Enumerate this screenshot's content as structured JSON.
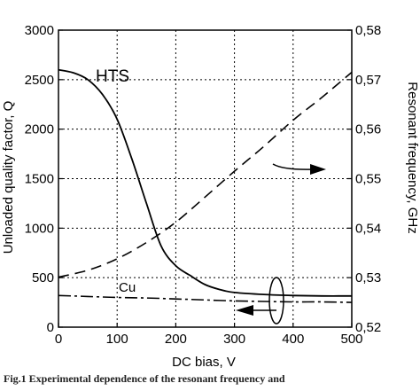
{
  "chart_data": {
    "type": "line",
    "xlabel": "DC bias, V",
    "ylabel_left": "Unloaded quality factor, Q",
    "ylabel_right": "Resonant frequency, GHz",
    "xlim": [
      0,
      500
    ],
    "ylim_left": [
      0,
      3000
    ],
    "ylim_right": [
      0.52,
      0.58
    ],
    "x_ticks": [
      "0",
      "100",
      "200",
      "300",
      "400",
      "500"
    ],
    "y_left_ticks": [
      "0",
      "500",
      "1000",
      "1500",
      "2000",
      "2500",
      "3000"
    ],
    "y_right_ticks": [
      "0,52",
      "0,53",
      "0,54",
      "0,55",
      "0,56",
      "0,57",
      "0,58"
    ],
    "grid": true,
    "series": [
      {
        "name": "HTS",
        "axis": "left",
        "style": "solid",
        "x": [
          0,
          25,
          50,
          75,
          100,
          125,
          150,
          175,
          200,
          225,
          250,
          275,
          300,
          350,
          400,
          450,
          500
        ],
        "y": [
          2600,
          2570,
          2500,
          2350,
          2100,
          1700,
          1250,
          820,
          620,
          520,
          430,
          380,
          350,
          330,
          320,
          315,
          315
        ]
      },
      {
        "name": "Cu",
        "axis": "left",
        "style": "dash-dot",
        "x": [
          0,
          50,
          100,
          150,
          200,
          250,
          300,
          350,
          400,
          450,
          500
        ],
        "y": [
          320,
          310,
          300,
          295,
          285,
          275,
          265,
          260,
          255,
          255,
          250
        ]
      },
      {
        "name": "",
        "axis": "right",
        "style": "dashed",
        "x": [
          0,
          50,
          100,
          150,
          200,
          250,
          300,
          350,
          400,
          450,
          500
        ],
        "y": [
          0.5301,
          0.5315,
          0.5338,
          0.5371,
          0.5412,
          0.5463,
          0.5515,
          0.5565,
          0.5618,
          0.5665,
          0.5715
        ]
      }
    ]
  },
  "caption": "Fig.1 Experimental dependence of the resonant frequency and"
}
